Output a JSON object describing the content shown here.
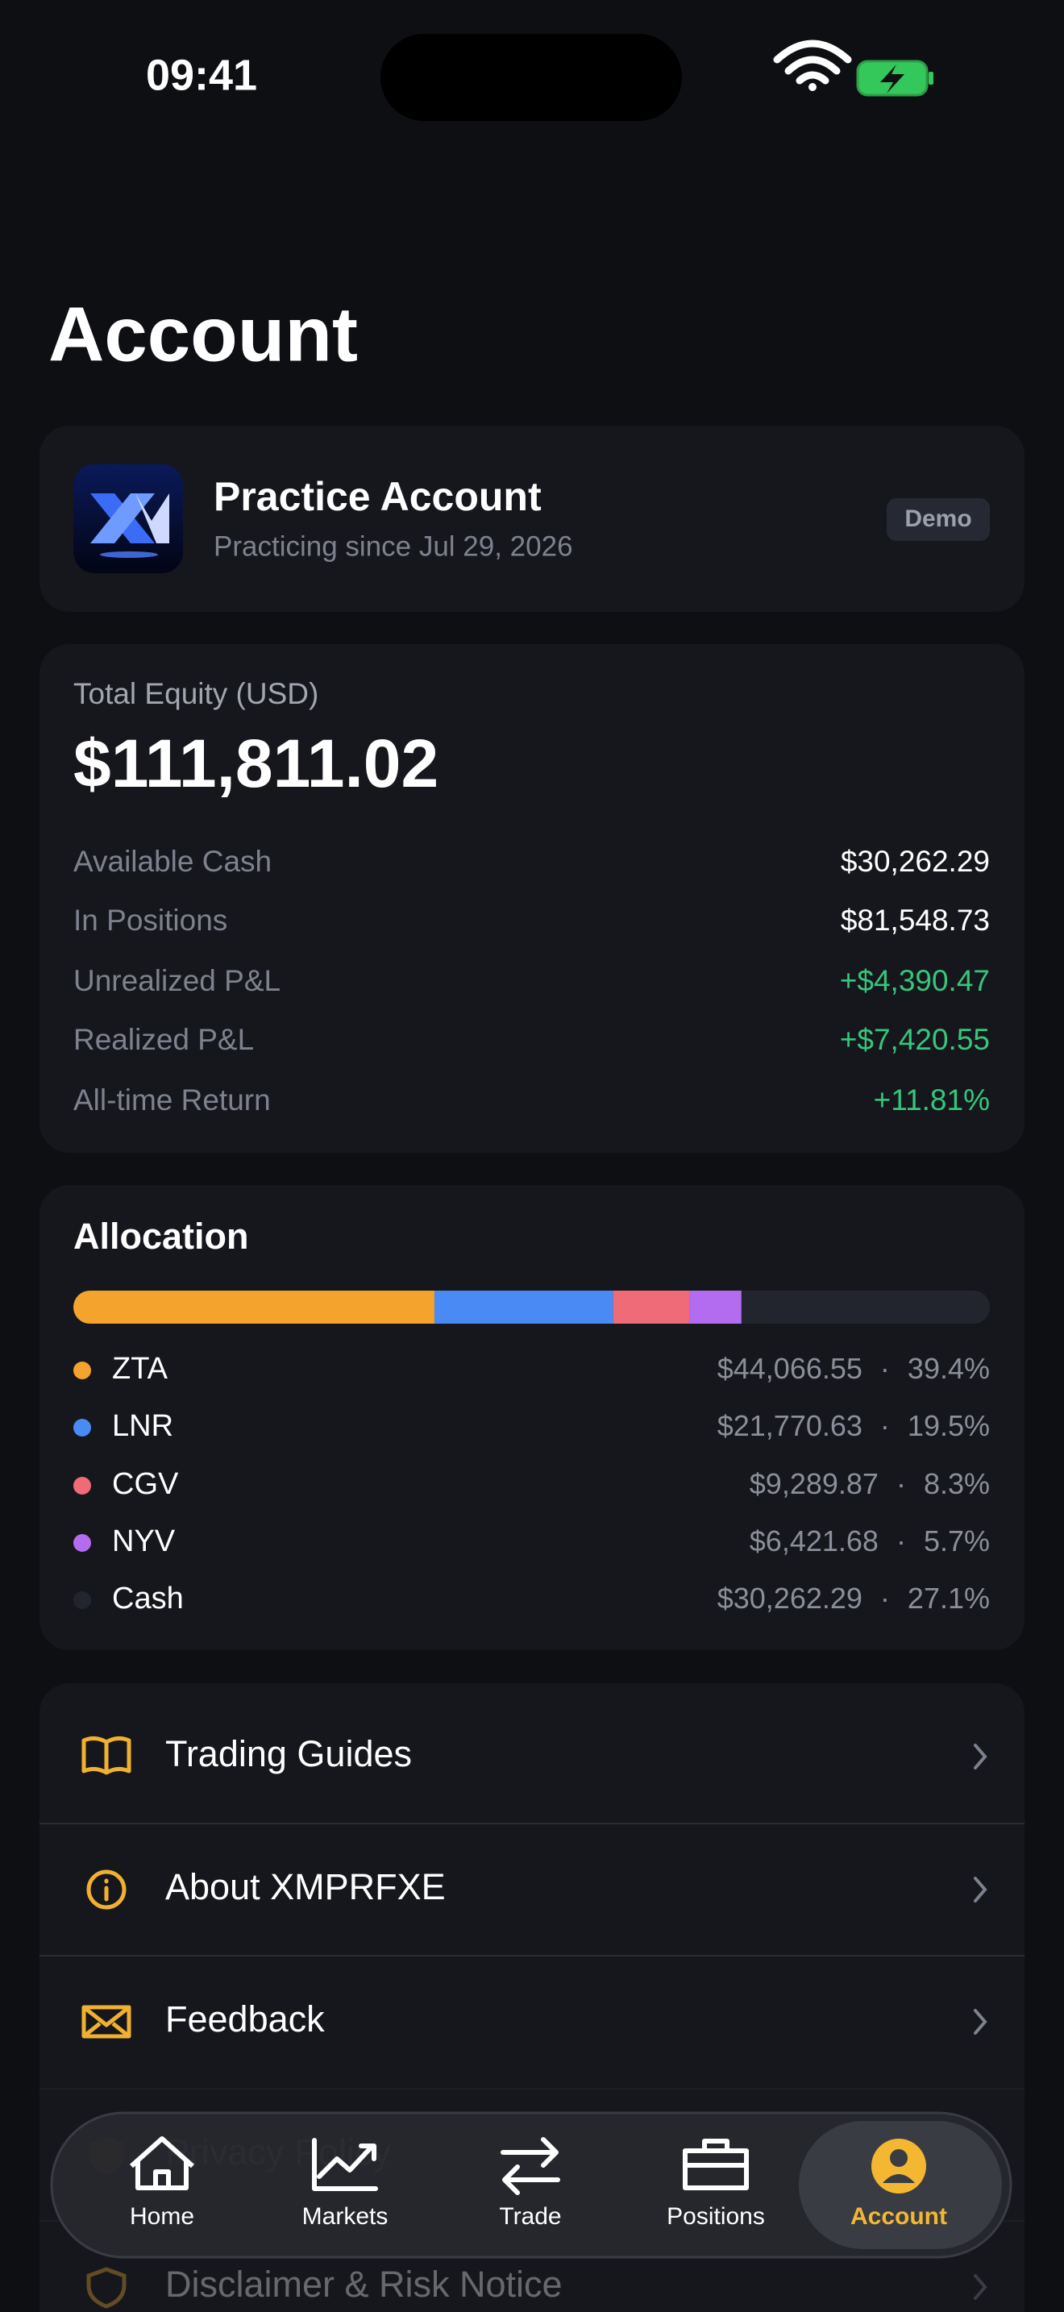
{
  "status": {
    "time": "09:41"
  },
  "header": {
    "title": "Account"
  },
  "profile": {
    "name": "Practice Account",
    "since": "Practicing since Jul 29, 2026",
    "badge": "Demo"
  },
  "equity": {
    "label": "Total Equity (USD)",
    "value": "$111,811.02",
    "rows": [
      {
        "label": "Available Cash",
        "value": "$30,262.29",
        "tone": "plain"
      },
      {
        "label": "In Positions",
        "value": "$81,548.73",
        "tone": "plain"
      },
      {
        "label": "Unrealized P&L",
        "value": "+$4,390.47",
        "tone": "gain"
      },
      {
        "label": "Realized P&L",
        "value": "+$7,420.55",
        "tone": "gain"
      },
      {
        "label": "All-time Return",
        "value": "+11.81%",
        "tone": "gain"
      }
    ]
  },
  "allocation": {
    "title": "Allocation",
    "separator": "·",
    "items": [
      {
        "name": "ZTA",
        "color": "#f4a32c",
        "amount": "$44,066.55",
        "share": 39.4,
        "share_label": "39.4%"
      },
      {
        "name": "LNR",
        "color": "#4a8af4",
        "amount": "$21,770.63",
        "share": 19.5,
        "share_label": "19.5%"
      },
      {
        "name": "CGV",
        "color": "#ef6b78",
        "amount": "$9,289.87",
        "share": 8.3,
        "share_label": "8.3%"
      },
      {
        "name": "NYV",
        "color": "#b36cf0",
        "amount": "$6,421.68",
        "share": 5.7,
        "share_label": "5.7%"
      },
      {
        "name": "Cash",
        "color": "#22252e",
        "amount": "$30,262.29",
        "share": 27.1,
        "share_label": "27.1%"
      }
    ]
  },
  "menu": {
    "items": [
      "Trading Guides",
      "About XMPRFXE",
      "Feedback",
      "Privacy Policy",
      "Disclaimer & Risk Notice"
    ]
  },
  "tabs": {
    "items": [
      "Home",
      "Markets",
      "Trade",
      "Positions",
      "Account"
    ],
    "active": 4
  }
}
